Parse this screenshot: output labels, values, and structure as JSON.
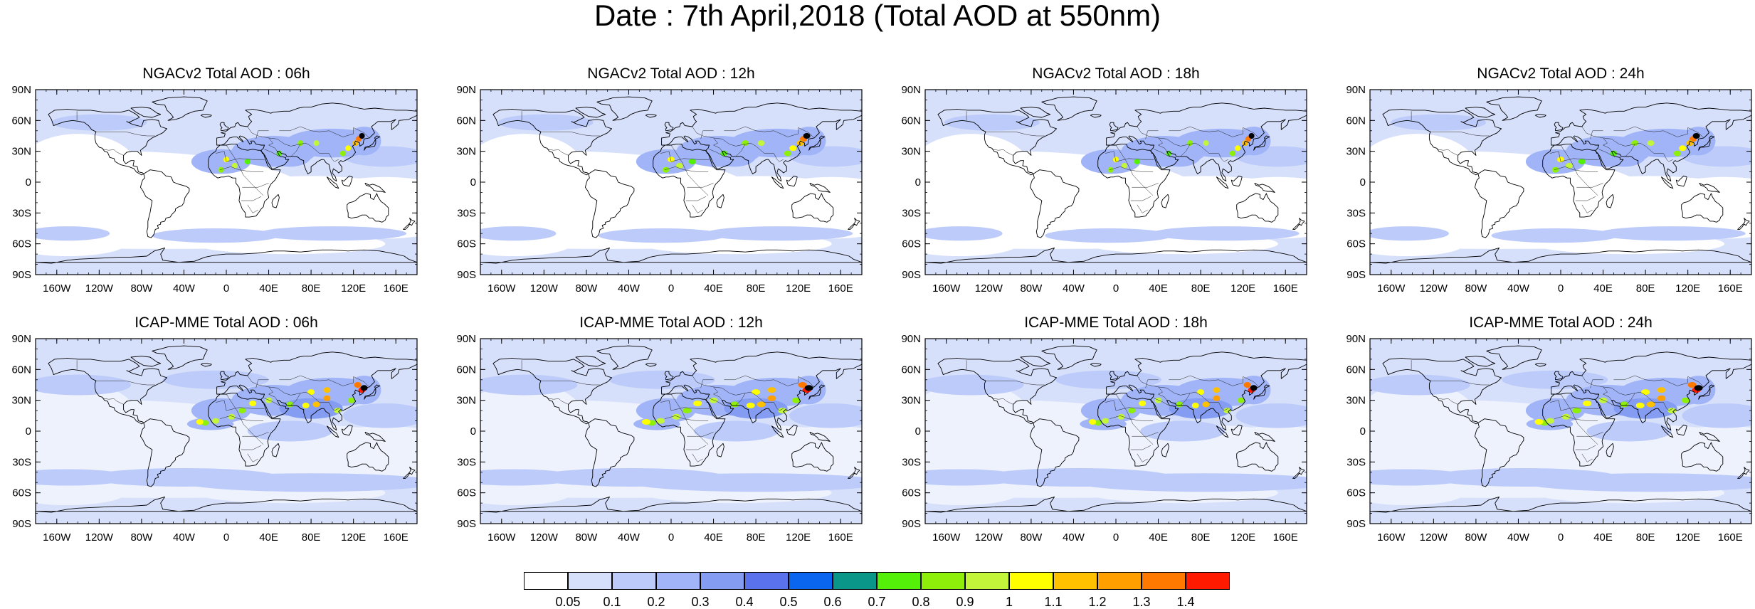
{
  "title": "Date : 7th April,2018 (Total AOD at 550nm)",
  "panels": [
    {
      "title": "NGACv2 Total AOD : 06h",
      "model": "NGACv2",
      "hour": "06h"
    },
    {
      "title": "NGACv2 Total AOD : 12h",
      "model": "NGACv2",
      "hour": "12h"
    },
    {
      "title": "NGACv2 Total AOD : 18h",
      "model": "NGACv2",
      "hour": "18h"
    },
    {
      "title": "NGACv2 Total AOD : 24h",
      "model": "NGACv2",
      "hour": "24h"
    },
    {
      "title": "ICAP-MME Total AOD : 06h",
      "model": "ICAP-MME",
      "hour": "06h"
    },
    {
      "title": "ICAP-MME Total AOD : 12h",
      "model": "ICAP-MME",
      "hour": "12h"
    },
    {
      "title": "ICAP-MME Total AOD : 18h",
      "model": "ICAP-MME",
      "hour": "18h"
    },
    {
      "title": "ICAP-MME Total AOD : 24h",
      "model": "ICAP-MME",
      "hour": "24h"
    }
  ],
  "axes": {
    "lat_labels": [
      "90N",
      "60N",
      "30N",
      "0",
      "30S",
      "60S",
      "90S"
    ],
    "lon_labels": [
      "160W",
      "120W",
      "80W",
      "40W",
      "0",
      "40E",
      "80E",
      "120E",
      "160E"
    ],
    "lat_values": [
      90,
      60,
      30,
      0,
      -30,
      -60,
      -90
    ],
    "lon_values": [
      -160,
      -120,
      -80,
      -40,
      0,
      40,
      80,
      120,
      160
    ],
    "lon_range": [
      -180,
      180
    ],
    "lat_range": [
      -90,
      90
    ]
  },
  "legend": {
    "labels": [
      "0.05",
      "0.1",
      "0.2",
      "0.3",
      "0.4",
      "0.5",
      "0.6",
      "0.7",
      "0.8",
      "0.9",
      "1",
      "1.1",
      "1.2",
      "1.3",
      "1.4"
    ],
    "colors": [
      "#ffffff",
      "#d7e0fb",
      "#bccbfa",
      "#a0b4f7",
      "#859cf3",
      "#5a73ec",
      "#0a66ee",
      "#0a9688",
      "#55f00a",
      "#8ef00a",
      "#c3f53a",
      "#ffff00",
      "#ffc000",
      "#ffa000",
      "#ff7800",
      "#ff1a00"
    ]
  },
  "colors": {
    "background_aod": "#d7e0fb",
    "coast": "#000000"
  }
}
